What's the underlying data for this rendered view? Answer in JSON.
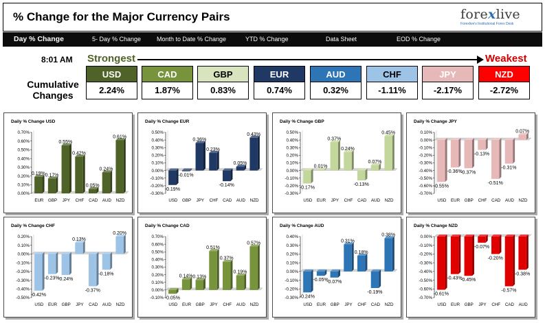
{
  "header": {
    "title": "% Change for the Major Currency Pairs",
    "logo": {
      "name": "forexlive",
      "prefix": "fore",
      "x": "x",
      "suffix": "live",
      "tagline": "Forexlive's Institutional Forex Desk",
      "icon": "forexlive-logo"
    }
  },
  "nav": {
    "items": [
      {
        "label": "Day % Change",
        "active": true
      },
      {
        "label": "5- Day % Change",
        "active": false
      },
      {
        "label": "Month to Date % Change",
        "active": false
      },
      {
        "label": "YTD % Change",
        "active": false
      },
      {
        "label": "Data Sheet",
        "active": false
      },
      {
        "label": "EOD % Change",
        "active": false
      }
    ]
  },
  "summary": {
    "time": "8:01 AM",
    "strongest_label": "Strongest",
    "weakest_label": "Weakest",
    "cumulative_label_1": "Cumulative",
    "cumulative_label_2": "Changes",
    "currencies": [
      {
        "code": "USD",
        "value": "2.24%",
        "bg": "#4f6228",
        "fg": "#ffffff"
      },
      {
        "code": "CAD",
        "value": "1.87%",
        "bg": "#77933c",
        "fg": "#ffffff"
      },
      {
        "code": "GBP",
        "value": "0.83%",
        "bg": "#d7e4bd",
        "fg": "#000000"
      },
      {
        "code": "EUR",
        "value": "0.74%",
        "bg": "#1f3864",
        "fg": "#ffffff"
      },
      {
        "code": "AUD",
        "value": "0.32%",
        "bg": "#2e75b6",
        "fg": "#ffffff"
      },
      {
        "code": "CHF",
        "value": "-1.11%",
        "bg": "#9dc3e6",
        "fg": "#000000"
      },
      {
        "code": "JPY",
        "value": "-2.17%",
        "bg": "#e6b9b8",
        "fg": "#ffffff"
      },
      {
        "code": "NZD",
        "value": "-2.72%",
        "bg": "#ff0000",
        "fg": "#ffffff"
      }
    ]
  },
  "chart_data": [
    {
      "type": "bar",
      "title": "Daily % Change USD",
      "color": "#4f6228",
      "categories": [
        "EUR",
        "GBP",
        "JPY",
        "CHF",
        "CAD",
        "AUD",
        "NZD"
      ],
      "values": [
        0.19,
        0.17,
        0.55,
        0.42,
        0.05,
        0.24,
        0.61
      ],
      "labels": [
        "0.19%",
        "0.17%",
        "0.55%",
        "0.42%",
        "0.05%",
        "0.24%",
        "0.61%"
      ],
      "ticks": [
        "0.70%",
        "0.60%",
        "0.50%",
        "0.40%",
        "0.30%",
        "0.20%",
        "0.10%",
        "0.00%"
      ],
      "ylim": [
        0,
        0.7
      ],
      "step": 0.1
    },
    {
      "type": "bar",
      "title": "Daily % Change EUR",
      "color": "#1f3864",
      "categories": [
        "USD",
        "GBP",
        "JPY",
        "CHF",
        "CAD",
        "AUD",
        "NZD"
      ],
      "values": [
        -0.19,
        -0.01,
        0.36,
        0.23,
        -0.14,
        0.05,
        0.43
      ],
      "labels": [
        "-0.19%",
        "-0.01%",
        "0.36%",
        "0.23%",
        "-0.14%",
        "0.05%",
        "0.43%"
      ],
      "ticks": [
        "0.50%",
        "0.40%",
        "0.30%",
        "0.20%",
        "0.10%",
        "0.00%",
        "-0.10%",
        "-0.20%",
        "-0.30%"
      ],
      "ylim": [
        -0.3,
        0.5
      ],
      "step": 0.1
    },
    {
      "type": "bar",
      "title": "Daily % Change GBP",
      "color": "#c3d69b",
      "categories": [
        "USD",
        "EUR",
        "JPY",
        "CHF",
        "CAD",
        "AUD",
        "NZD"
      ],
      "values": [
        -0.17,
        0.01,
        0.37,
        0.24,
        -0.13,
        0.07,
        0.45
      ],
      "labels": [
        "-0.17%",
        "0.01%",
        "0.37%",
        "0.24%",
        "-0.13%",
        "0.07%",
        "0.45%"
      ],
      "ticks": [
        "0.50%",
        "0.40%",
        "0.30%",
        "0.20%",
        "0.10%",
        "0.00%",
        "-0.10%",
        "-0.20%",
        "-0.30%"
      ],
      "ylim": [
        -0.3,
        0.5
      ],
      "step": 0.1
    },
    {
      "type": "bar",
      "title": "Daily % Change JPY",
      "color": "#e6b9b8",
      "categories": [
        "USD",
        "EUR",
        "GBP",
        "CHF",
        "CAD",
        "AUD",
        "NZD"
      ],
      "values": [
        -0.55,
        -0.36,
        -0.37,
        -0.13,
        -0.51,
        -0.31,
        0.07
      ],
      "labels": [
        "-0.55%",
        "-0.36%",
        "-0.37%",
        "-0.13%",
        "-0.51%",
        "-0.31%",
        "0.07%"
      ],
      "ticks": [
        "0.10%",
        "0.00%",
        "-0.10%",
        "-0.20%",
        "-0.30%",
        "-0.40%",
        "-0.50%",
        "-0.60%",
        "-0.70%"
      ],
      "ylim": [
        -0.7,
        0.1
      ],
      "step": 0.1
    },
    {
      "type": "bar",
      "title": "Daily % Change CHF",
      "color": "#9dc3e6",
      "categories": [
        "USD",
        "EUR",
        "GBP",
        "JPY",
        "CAD",
        "AUD",
        "NZD"
      ],
      "values": [
        -0.42,
        -0.23,
        -0.24,
        0.13,
        -0.37,
        -0.18,
        0.2
      ],
      "labels": [
        "-0.42%",
        "-0.23%",
        "-0.24%",
        "0.13%",
        "-0.37%",
        "-0.18%",
        "0.20%"
      ],
      "ticks": [
        "0.20%",
        "0.10%",
        "0.00%",
        "-0.10%",
        "-0.20%",
        "-0.30%",
        "-0.40%",
        "-0.50%"
      ],
      "ylim": [
        -0.5,
        0.2
      ],
      "step": 0.1
    },
    {
      "type": "bar",
      "title": "Daily % Change CAD",
      "color": "#77933c",
      "categories": [
        "USD",
        "EUR",
        "GBP",
        "JPY",
        "CHF",
        "AUD",
        "NZD"
      ],
      "values": [
        -0.05,
        0.14,
        0.13,
        0.51,
        0.37,
        0.19,
        0.57
      ],
      "labels": [
        "-0.05%",
        "0.14%",
        "0.13%",
        "0.51%",
        "0.37%",
        "0.19%",
        "0.57%"
      ],
      "ticks": [
        "0.70%",
        "0.60%",
        "0.50%",
        "0.40%",
        "0.30%",
        "0.20%",
        "0.10%",
        "0.00%",
        "-0.10%"
      ],
      "ylim": [
        -0.1,
        0.7
      ],
      "step": 0.1
    },
    {
      "type": "bar",
      "title": "Daily % Change AUD",
      "color": "#2e75b6",
      "categories": [
        "USD",
        "EUR",
        "GBP",
        "JPY",
        "CHF",
        "CAD",
        "NZD"
      ],
      "values": [
        -0.24,
        -0.05,
        -0.07,
        0.31,
        0.18,
        -0.19,
        0.38
      ],
      "labels": [
        "-0.24%",
        "-0.05%",
        "-0.07%",
        "0.31%",
        "0.18%",
        "-0.19%",
        "0.38%"
      ],
      "ticks": [
        "0.40%",
        "0.30%",
        "0.20%",
        "0.10%",
        "0.00%",
        "-0.10%",
        "-0.20%",
        "-0.30%"
      ],
      "ylim": [
        -0.3,
        0.4
      ],
      "step": 0.1
    },
    {
      "type": "bar",
      "title": "Daily % Change NZD",
      "color": "#e00000",
      "categories": [
        "USD",
        "EUR",
        "GBP",
        "JPY",
        "CHF",
        "CAD",
        "AUD"
      ],
      "values": [
        -0.61,
        -0.43,
        -0.45,
        -0.07,
        -0.2,
        -0.57,
        -0.38
      ],
      "labels": [
        "-0.61%",
        "-0.43%",
        "-0.45%",
        "-0.07%",
        "-0.20%",
        "-0.57%",
        "-0.38%"
      ],
      "ticks": [
        "0.00%",
        "-0.10%",
        "-0.20%",
        "-0.30%",
        "-0.40%",
        "-0.50%",
        "-0.60%",
        "-0.70%"
      ],
      "ylim": [
        -0.7,
        0
      ],
      "step": 0.1
    }
  ]
}
